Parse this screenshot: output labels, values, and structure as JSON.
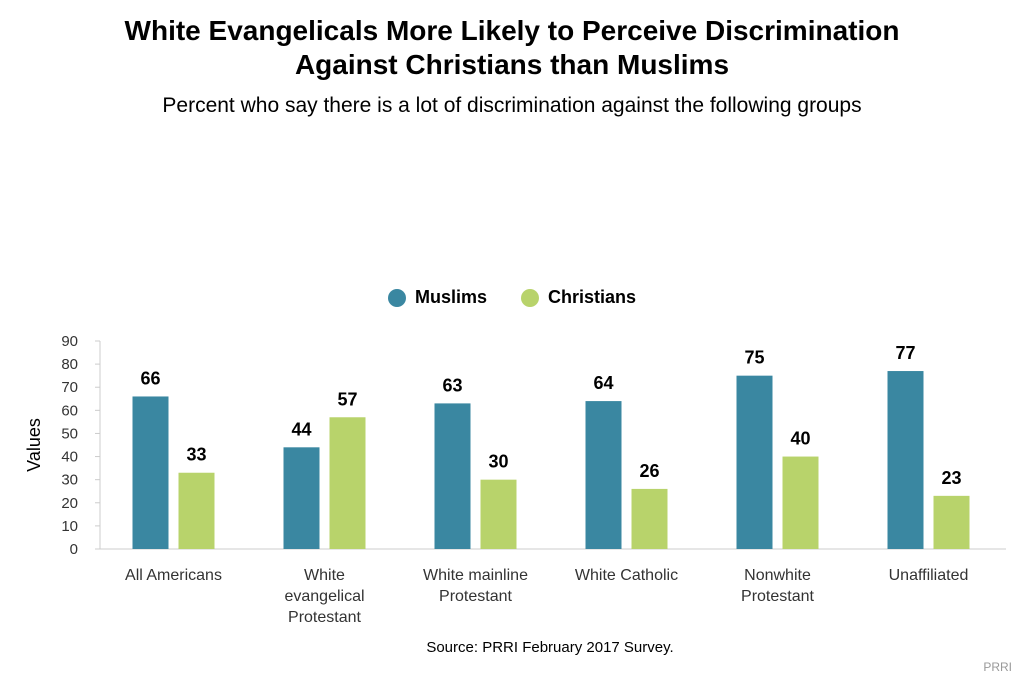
{
  "title_line1": "White Evangelicals More Likely to Perceive Discrimination",
  "title_line2": "Against Christians than Muslims",
  "subtitle": "Percent who say there is a lot of discrimination against the following groups",
  "source": "Source: PRRI February 2017 Survey.",
  "credit": "PRRI",
  "colors": {
    "muslims": "#3a87a1",
    "christians": "#b8d36b",
    "axis": "#cccccc",
    "tick_text": "#333333"
  },
  "chart_data": {
    "type": "bar",
    "title": "White Evangelicals More Likely to Perceive Discrimination Against Christians than Muslims",
    "subtitle": "Percent who say there is a lot of discrimination against the following groups",
    "xlabel": "",
    "ylabel": "Values",
    "ylim": [
      0,
      90
    ],
    "yticks": [
      0,
      10,
      20,
      30,
      40,
      50,
      60,
      70,
      80,
      90
    ],
    "grid": false,
    "legend_position": "top-center",
    "categories": [
      [
        "All Americans"
      ],
      [
        "White",
        "evangelical",
        "Protestant"
      ],
      [
        "White mainline",
        "Protestant"
      ],
      [
        "White Catholic"
      ],
      [
        "Nonwhite",
        "Protestant"
      ],
      [
        "Unaffiliated"
      ]
    ],
    "series": [
      {
        "name": "Muslims",
        "values": [
          66,
          44,
          63,
          64,
          75,
          77
        ]
      },
      {
        "name": "Christians",
        "values": [
          33,
          57,
          30,
          26,
          40,
          23
        ]
      }
    ]
  }
}
